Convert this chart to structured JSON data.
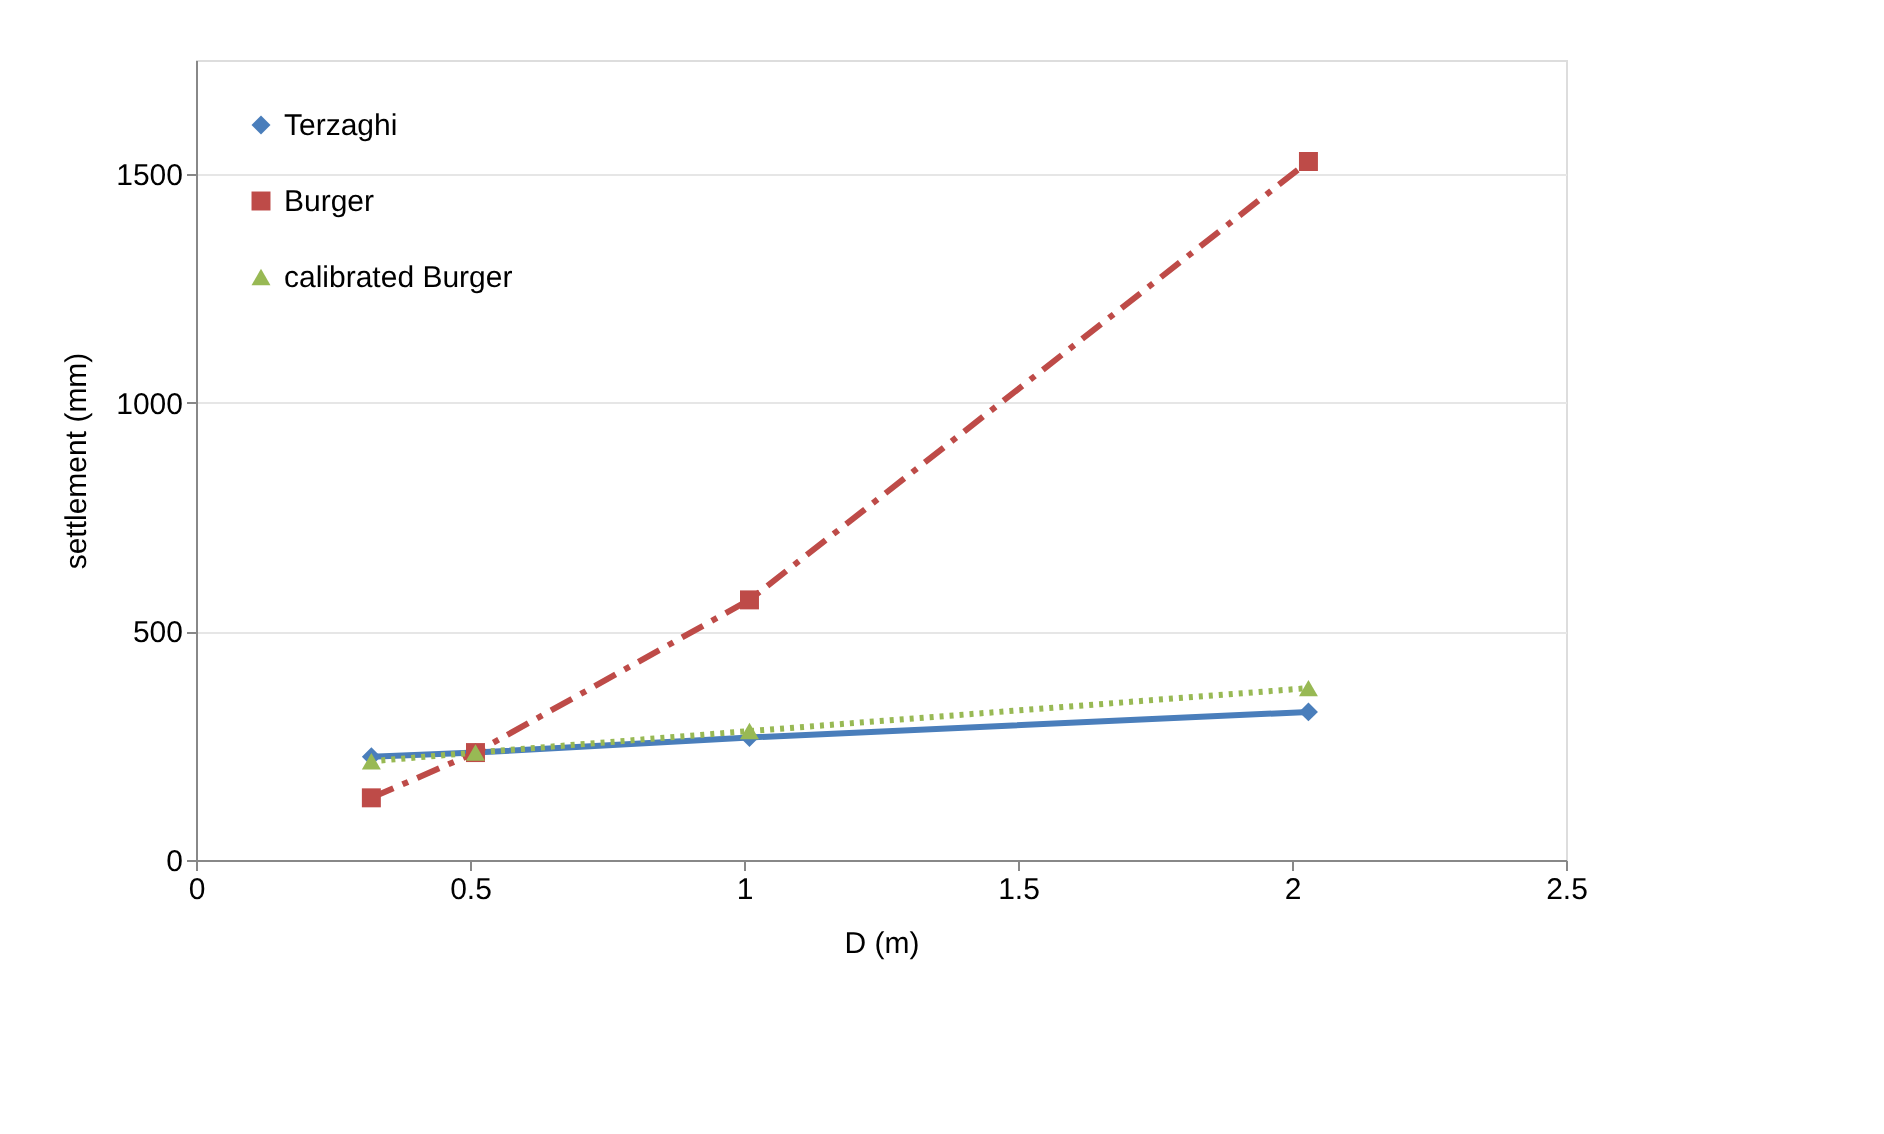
{
  "chart_data": {
    "type": "line",
    "xlabel": "D (m)",
    "ylabel": "settlement (mm)",
    "x": [
      0.32,
      0.51,
      1.01,
      2.03
    ],
    "series": [
      {
        "name": "Terzaghi",
        "color": "#4a7ebb",
        "values": [
          226,
          235,
          268,
          324
        ],
        "marker": "diamond",
        "line_style": "solid"
      },
      {
        "name": "Burger",
        "color": "#be4b48",
        "values": [
          136,
          235,
          569,
          1528
        ],
        "marker": "square",
        "line_style": "dashed"
      },
      {
        "name": "calibrated Burger",
        "color": "#98b954",
        "values": [
          216,
          235,
          282,
          376
        ],
        "marker": "triangle",
        "line_style": "dotted"
      }
    ],
    "xlim": [
      0,
      2.5
    ],
    "xticks": [
      0,
      0.5,
      1,
      1.5,
      2,
      2.5
    ],
    "ylim": [
      0,
      1750
    ],
    "yticks": [
      0,
      500,
      1000,
      1500
    ],
    "grid": "y",
    "legend": "top left"
  }
}
